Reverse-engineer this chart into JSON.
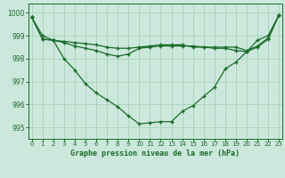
{
  "title": "Graphe pression niveau de la mer (hPa)",
  "background_color": "#cce8dc",
  "grid_color": "#aad4c0",
  "line_color": "#1a6b2a",
  "x_ticks": [
    0,
    1,
    2,
    3,
    4,
    5,
    6,
    7,
    8,
    9,
    10,
    11,
    12,
    13,
    14,
    15,
    16,
    17,
    18,
    19,
    20,
    21,
    22,
    23
  ],
  "ylim": [
    994.5,
    1000.4
  ],
  "y_ticks": [
    995,
    996,
    997,
    998,
    999,
    1000
  ],
  "series1": [
    999.8,
    999.0,
    998.8,
    998.0,
    997.5,
    996.9,
    996.5,
    996.2,
    995.9,
    995.5,
    995.15,
    995.2,
    995.25,
    995.25,
    995.7,
    995.95,
    996.35,
    996.75,
    997.55,
    997.85,
    998.3,
    998.8,
    999.0,
    999.9
  ],
  "series2": [
    999.8,
    998.85,
    998.8,
    998.75,
    998.7,
    998.65,
    998.6,
    998.5,
    998.45,
    998.45,
    998.5,
    998.55,
    998.6,
    998.6,
    998.6,
    998.5,
    998.5,
    998.45,
    998.45,
    998.35,
    998.3,
    998.5,
    998.85,
    999.9
  ],
  "series3": [
    999.8,
    998.85,
    998.8,
    998.7,
    998.55,
    998.45,
    998.35,
    998.2,
    998.1,
    998.2,
    998.45,
    998.5,
    998.55,
    998.55,
    998.55,
    998.55,
    998.5,
    998.5,
    998.5,
    998.5,
    998.35,
    998.55,
    998.9,
    999.9
  ]
}
